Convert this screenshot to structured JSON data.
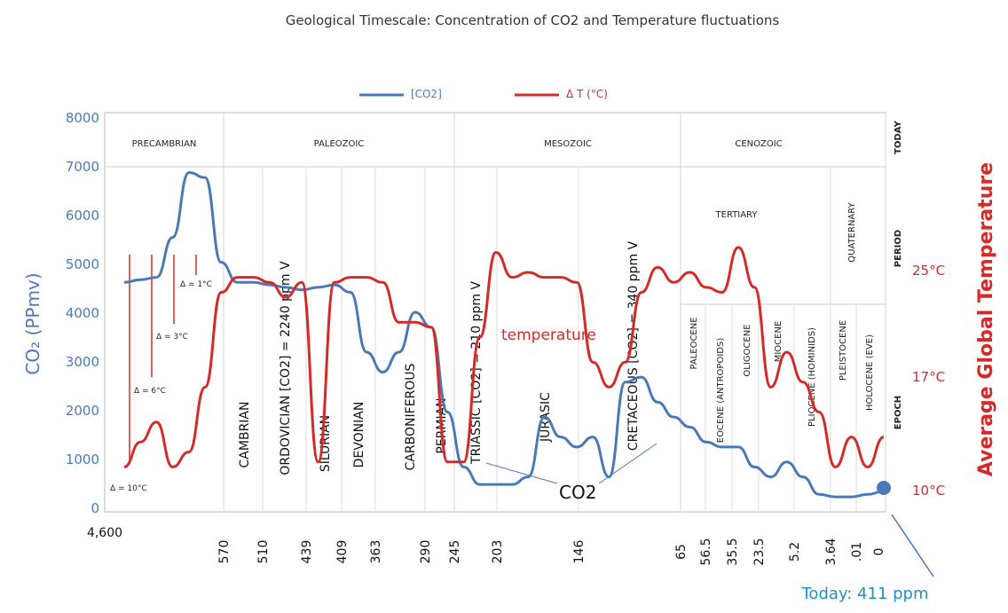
{
  "chart_data": {
    "type": "line",
    "title": "Geological Timescale: Concentration of CO2 and Temperature fluctuations",
    "legend": [
      {
        "name": "[CO2]",
        "color": "#4a79b8"
      },
      {
        "name": "Δ T (°C)",
        "color": "#d42a2a"
      }
    ],
    "y_left": {
      "label": "CO₂ (PPmv)",
      "ticks": [
        "8000",
        "7000",
        "6000",
        "5000",
        "4000",
        "3000",
        "2000",
        "1000",
        "0"
      ],
      "range": [
        0,
        8000
      ]
    },
    "y_right": {
      "label": "Average Global Temperature",
      "ticks": [
        "25°C",
        "17°C",
        "10°C"
      ]
    },
    "x_tick_labels": [
      "4,600",
      "570",
      "510",
      "439",
      "409",
      "363",
      "290",
      "245",
      "203",
      "146",
      "65",
      "56.5",
      "35.5",
      "23.5",
      "5.2",
      "3.64",
      ".01",
      "0"
    ],
    "eras": [
      "PRECAMBRIAN",
      "PALEOZOIC",
      "MESOZOIC",
      "CENOZOIC"
    ],
    "right_header_labels": [
      "TODAY",
      "PERIOD",
      "EPOCH"
    ],
    "periods": [
      "CAMBRIAN",
      "ORDOVICIAN [CO2] = 2240 ppm V",
      "SILURIAN",
      "DEVONIAN",
      "CARBONIFEROUS",
      "PERMIAN",
      "TRIASSIC [CO2] = 210 ppm V",
      "JURASIC",
      "CRETACEOUS [CO2] = 340 ppm V"
    ],
    "cenozoic_subdivisions": [
      "TERTIARY",
      "QUATERNARY"
    ],
    "epochs": [
      "PALEOCENE",
      "EOCENE (ANTROPOIDS)",
      "OLIGOCENE",
      "MIOCENE",
      "PLIOCENE (HOMINIDS)",
      "PLEISTOCENE",
      "HOLOCENE (EVE)"
    ],
    "annotations": {
      "temperature": "temperature",
      "co2": "CO2",
      "today": "Today: 411 ppm",
      "deltas": [
        "Δ = 1°C",
        "Δ = 3°C",
        "Δ = 6°C",
        "Δ = 10°C"
      ]
    },
    "series": [
      {
        "name": "[CO2]",
        "color": "#4a79b8",
        "values": [
          [
            0,
            4600
          ],
          [
            1,
            4650
          ],
          [
            2,
            4700
          ],
          [
            3,
            5500
          ],
          [
            4,
            6800
          ],
          [
            5,
            6700
          ],
          [
            6,
            5000
          ],
          [
            7,
            4600
          ],
          [
            8,
            4600
          ],
          [
            9,
            4550
          ],
          [
            10,
            4500
          ],
          [
            11,
            4450
          ],
          [
            12,
            4500
          ],
          [
            13,
            4550
          ],
          [
            14,
            4400
          ],
          [
            15,
            3200
          ],
          [
            16,
            2800
          ],
          [
            17,
            3200
          ],
          [
            18,
            4000
          ],
          [
            19,
            3700
          ],
          [
            20,
            2000
          ],
          [
            21,
            900
          ],
          [
            22,
            550
          ],
          [
            23,
            550
          ],
          [
            24,
            550
          ],
          [
            25,
            700
          ],
          [
            26,
            1900
          ],
          [
            27,
            1500
          ],
          [
            28,
            1300
          ],
          [
            29,
            1500
          ],
          [
            30,
            700
          ],
          [
            31,
            2600
          ],
          [
            32,
            2700
          ],
          [
            33,
            2200
          ],
          [
            34,
            1900
          ],
          [
            35,
            1700
          ],
          [
            36,
            1400
          ],
          [
            37,
            1300
          ],
          [
            38,
            1300
          ],
          [
            39,
            900
          ],
          [
            40,
            700
          ],
          [
            41,
            1000
          ],
          [
            42,
            700
          ],
          [
            43,
            350
          ],
          [
            44,
            300
          ],
          [
            45,
            300
          ],
          [
            46,
            350
          ],
          [
            47,
            411
          ]
        ]
      },
      {
        "name": "Δ T (°C)",
        "color": "#d42a2a",
        "values": [
          [
            0,
            900
          ],
          [
            1,
            1400
          ],
          [
            2,
            1800
          ],
          [
            3,
            900
          ],
          [
            4,
            1200
          ],
          [
            5,
            2500
          ],
          [
            6,
            4400
          ],
          [
            7,
            4700
          ],
          [
            8,
            4700
          ],
          [
            9,
            4600
          ],
          [
            10,
            4300
          ],
          [
            11,
            4600
          ],
          [
            12,
            1000
          ],
          [
            13,
            4600
          ],
          [
            14,
            4700
          ],
          [
            15,
            4700
          ],
          [
            16,
            4600
          ],
          [
            17,
            3800
          ],
          [
            18,
            3800
          ],
          [
            19,
            3700
          ],
          [
            20,
            1000
          ],
          [
            21,
            1000
          ],
          [
            22,
            3500
          ],
          [
            23,
            5200
          ],
          [
            24,
            4700
          ],
          [
            25,
            4800
          ],
          [
            26,
            4700
          ],
          [
            27,
            4700
          ],
          [
            28,
            4600
          ],
          [
            29,
            3000
          ],
          [
            30,
            2500
          ],
          [
            31,
            3000
          ],
          [
            32,
            4400
          ],
          [
            33,
            4900
          ],
          [
            34,
            4600
          ],
          [
            35,
            4800
          ],
          [
            36,
            4500
          ],
          [
            37,
            4400
          ],
          [
            38,
            5300
          ],
          [
            39,
            4500
          ],
          [
            40,
            2500
          ],
          [
            41,
            3200
          ],
          [
            42,
            2600
          ],
          [
            43,
            2000
          ],
          [
            44,
            900
          ],
          [
            45,
            1500
          ],
          [
            46,
            900
          ],
          [
            47,
            1500
          ]
        ]
      }
    ]
  }
}
